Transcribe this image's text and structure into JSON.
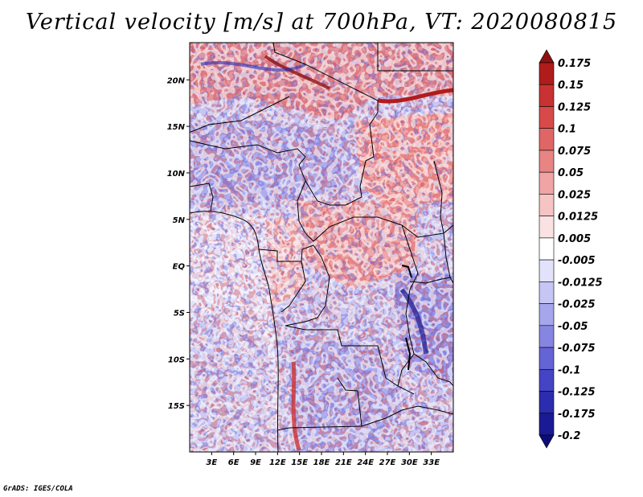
{
  "title": "Vertical velocity [m/s] at 700hPa, VT: 2020080815",
  "credit": "GrADS: IGES/COLA",
  "map": {
    "variable": "Vertical velocity",
    "units": "m/s",
    "level": "700hPa",
    "valid_time": "2020080815",
    "lon_range": [
      0,
      36
    ],
    "lat_range": [
      -20,
      24
    ],
    "lat_ticks": [
      {
        "value": 20,
        "label": "20N"
      },
      {
        "value": 15,
        "label": "15N"
      },
      {
        "value": 10,
        "label": "10N"
      },
      {
        "value": 5,
        "label": "5N"
      },
      {
        "value": 0,
        "label": "EQ"
      },
      {
        "value": -5,
        "label": "5S"
      },
      {
        "value": -10,
        "label": "10S"
      },
      {
        "value": -15,
        "label": "15S"
      }
    ],
    "lon_ticks": [
      {
        "value": 3,
        "label": "3E"
      },
      {
        "value": 6,
        "label": "6E"
      },
      {
        "value": 9,
        "label": "9E"
      },
      {
        "value": 12,
        "label": "12E"
      },
      {
        "value": 15,
        "label": "15E"
      },
      {
        "value": 18,
        "label": "18E"
      },
      {
        "value": 21,
        "label": "21E"
      },
      {
        "value": 24,
        "label": "24E"
      },
      {
        "value": 27,
        "label": "27E"
      },
      {
        "value": 30,
        "label": "30E"
      },
      {
        "value": 33,
        "label": "33E"
      }
    ]
  },
  "colorbar": {
    "levels": [
      "0.175",
      "0.15",
      "0.125",
      "0.1",
      "0.075",
      "0.05",
      "0.025",
      "0.0125",
      "0.005",
      "-0.005",
      "-0.0125",
      "-0.025",
      "-0.05",
      "-0.075",
      "-0.1",
      "-0.125",
      "-0.175",
      "-0.2"
    ],
    "colors": [
      "#8e1010",
      "#b01c1c",
      "#c93232",
      "#d84a4a",
      "#e06666",
      "#e88484",
      "#f0a4a4",
      "#f6c4c4",
      "#fbe2e2",
      "#ffffff",
      "#e2e2fb",
      "#c6c6f4",
      "#a6a6ec",
      "#8686e2",
      "#6464d6",
      "#4444c4",
      "#2c2cae",
      "#1a1a94",
      "#0c0c78"
    ]
  }
}
